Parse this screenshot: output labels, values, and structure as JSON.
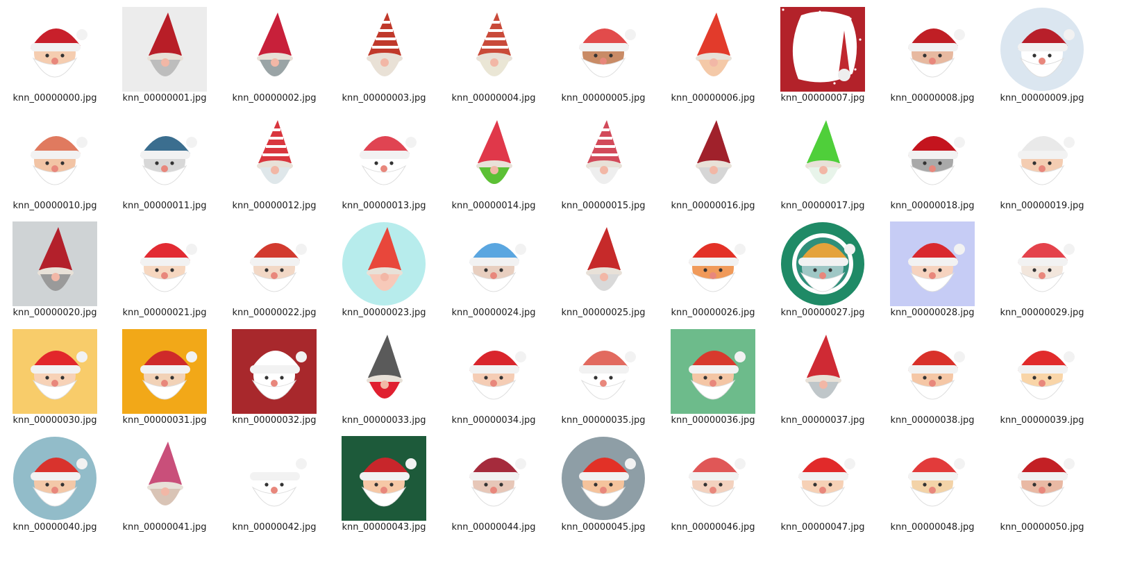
{
  "view": {
    "type": "icon-grid",
    "columns": 10
  },
  "files": [
    {
      "name": "knn_00000000.jpg",
      "kind": "santa-hat-card",
      "bg": "#ffffff",
      "hat": "#c8202b",
      "face": "#f5cdb0"
    },
    {
      "name": "knn_00000001.jpg",
      "kind": "gnome-tall",
      "bg": "#ececec",
      "hat": "#b81e27",
      "face": "#bdbdbd"
    },
    {
      "name": "knn_00000002.jpg",
      "kind": "gnome-tree",
      "bg": "#ffffff",
      "hat": "#c8203a",
      "face": "#9aa4a6"
    },
    {
      "name": "knn_00000003.jpg",
      "kind": "gnome-striped",
      "bg": "#ffffff",
      "hat": "#c0392b",
      "face": "#e9e1d6"
    },
    {
      "name": "knn_00000004.jpg",
      "kind": "gnome-striped",
      "bg": "#ffffff",
      "hat": "#c94a3a",
      "face": "#eae6d5"
    },
    {
      "name": "knn_00000005.jpg",
      "kind": "santa-outline",
      "bg": "#ffffff",
      "hat": "#e24b4b",
      "face": "#c98b66"
    },
    {
      "name": "knn_00000006.jpg",
      "kind": "gnome-small",
      "bg": "#ffffff",
      "hat": "#e23b2b",
      "face": "#f4c9a8"
    },
    {
      "name": "knn_00000007.jpg",
      "kind": "red-frame",
      "bg": "#b3222a",
      "hat": "#c0282f",
      "face": "#ffffff"
    },
    {
      "name": "knn_00000008.jpg",
      "kind": "santa-3d",
      "bg": "#ffffff",
      "hat": "#c01f25",
      "face": "#e7b9a0"
    },
    {
      "name": "knn_00000009.jpg",
      "kind": "snowglobe",
      "bg": "#dbe6f0",
      "hat": "#b81f2a",
      "face": "#ffffff"
    },
    {
      "name": "knn_00000010.jpg",
      "kind": "elf-sketch",
      "bg": "#ffffff",
      "hat": "#e07a5f",
      "face": "#f2c4a5"
    },
    {
      "name": "knn_00000011.jpg",
      "kind": "beard-blue-hat",
      "bg": "#ffffff",
      "hat": "#3b6e8f",
      "face": "#d8d8d8"
    },
    {
      "name": "knn_00000012.jpg",
      "kind": "gnome-striped",
      "bg": "#ffffff",
      "hat": "#d9363e",
      "face": "#dfe7ea"
    },
    {
      "name": "knn_00000013.jpg",
      "kind": "santa-line",
      "bg": "#ffffff",
      "hat": "#e04452",
      "face": "#ffffff"
    },
    {
      "name": "knn_00000014.jpg",
      "kind": "elf-hat",
      "bg": "#ffffff",
      "hat": "#e0384a",
      "face": "#5cc035"
    },
    {
      "name": "knn_00000015.jpg",
      "kind": "gnome-striped",
      "bg": "#ffffff",
      "hat": "#d24a5a",
      "face": "#eeeeee"
    },
    {
      "name": "knn_00000016.jpg",
      "kind": "gnome-small",
      "bg": "#ffffff",
      "hat": "#a0212b",
      "face": "#d6d6d6"
    },
    {
      "name": "knn_00000017.jpg",
      "kind": "gnome-small",
      "bg": "#ffffff",
      "hat": "#4fcf3a",
      "face": "#e8f4ea"
    },
    {
      "name": "knn_00000018.jpg",
      "kind": "santa-hat-beard",
      "bg": "#ffffff",
      "hat": "#c4141e",
      "face": "#a9a9a9"
    },
    {
      "name": "knn_00000019.jpg",
      "kind": "santa-green",
      "bg": "#ffffff",
      "hat": "#e9e9e9",
      "face": "#f4cdb2"
    },
    {
      "name": "knn_00000020.jpg",
      "kind": "gnome-wood",
      "bg": "#cfd3d5",
      "hat": "#b3202b",
      "face": "#9a9a9a"
    },
    {
      "name": "knn_00000021.jpg",
      "kind": "santa-mask",
      "bg": "#ffffff",
      "hat": "#e22b33",
      "face": "#f6d7c0"
    },
    {
      "name": "knn_00000022.jpg",
      "kind": "santa-small",
      "bg": "#ffffff",
      "hat": "#d23a2f",
      "face": "#f2d8c6"
    },
    {
      "name": "knn_00000023.jpg",
      "kind": "circle-gnome",
      "bg": "#b7ecec",
      "hat": "#e8473b",
      "face": "#f7c9b9"
    },
    {
      "name": "knn_00000024.jpg",
      "kind": "beard-long",
      "bg": "#ffffff",
      "hat": "#5aa6e0",
      "face": "#e8cfc0"
    },
    {
      "name": "knn_00000025.jpg",
      "kind": "gnome-gift",
      "bg": "#ffffff",
      "hat": "#c62a2a",
      "face": "#d9d9d9"
    },
    {
      "name": "knn_00000026.jpg",
      "kind": "santa-flat",
      "bg": "#ffffff",
      "hat": "#e33127",
      "face": "#f09a5a"
    },
    {
      "name": "knn_00000027.jpg",
      "kind": "wreath",
      "bg": "#1f8a66",
      "hat": "#e4a23b",
      "face": "#9fc7c5"
    },
    {
      "name": "knn_00000028.jpg",
      "kind": "santa-purple",
      "bg": "#c6ccf5",
      "hat": "#d9292f",
      "face": "#f6d3bf"
    },
    {
      "name": "knn_00000029.jpg",
      "kind": "hat-beard-flat",
      "bg": "#ffffff",
      "hat": "#e4424b",
      "face": "#f2e6dc"
    },
    {
      "name": "knn_00000030.jpg",
      "kind": "santa-bunting",
      "bg": "#f8cc6a",
      "hat": "#e2272b",
      "face": "#f7d2b7"
    },
    {
      "name": "knn_00000031.jpg",
      "kind": "santa-arms",
      "bg": "#f2a818",
      "hat": "#cf2a2a",
      "face": "#f2d2b7"
    },
    {
      "name": "knn_00000032.jpg",
      "kind": "santa-dots",
      "bg": "#a8282c",
      "hat": "#ffffff",
      "face": "#ffffff"
    },
    {
      "name": "knn_00000033.jpg",
      "kind": "gnome-stars",
      "bg": "#ffffff",
      "hat": "#5a5a5a",
      "face": "#e02030"
    },
    {
      "name": "knn_00000034.jpg",
      "kind": "santa-wink",
      "bg": "#ffffff",
      "hat": "#d9252c",
      "face": "#f5cdb5"
    },
    {
      "name": "knn_00000035.jpg",
      "kind": "santa-swirl",
      "bg": "#ffffff",
      "hat": "#e26a5f",
      "face": "#ffffff"
    },
    {
      "name": "knn_00000036.jpg",
      "kind": "santa-green-bg",
      "bg": "#6dbb8b",
      "hat": "#d83a2d",
      "face": "#f4c6a5"
    },
    {
      "name": "knn_00000037.jpg",
      "kind": "gnome-skate",
      "bg": "#ffffff",
      "hat": "#cf2a34",
      "face": "#bfc6c9"
    },
    {
      "name": "knn_00000038.jpg",
      "kind": "santa-standing",
      "bg": "#ffffff",
      "hat": "#d9312a",
      "face": "#f5c7a6"
    },
    {
      "name": "knn_00000039.jpg",
      "kind": "santa-cartoon",
      "bg": "#ffffff",
      "hat": "#e12b2b",
      "face": "#f9d5a8"
    },
    {
      "name": "knn_00000040.jpg",
      "kind": "circle-santa",
      "bg": "#92bcc9",
      "hat": "#d9332d",
      "face": "#f3c8a8"
    },
    {
      "name": "knn_00000041.jpg",
      "kind": "gnome-pink",
      "bg": "#ffffff",
      "hat": "#c94f7a",
      "face": "#d9c4b6"
    },
    {
      "name": "knn_00000042.jpg",
      "kind": "santa-outline-thin",
      "bg": "#ffffff",
      "hat": "#ffffff",
      "face": "#ffffff"
    },
    {
      "name": "knn_00000043.jpg",
      "kind": "santa-green-square",
      "bg": "#1d5a3a",
      "hat": "#c8262b",
      "face": "#f6c8a6"
    },
    {
      "name": "knn_00000044.jpg",
      "kind": "santa-old",
      "bg": "#ffffff",
      "hat": "#a52b3c",
      "face": "#e7c7b8"
    },
    {
      "name": "knn_00000045.jpg",
      "kind": "circle-flat",
      "bg": "#8e9ea6",
      "hat": "#e23127",
      "face": "#f5c39c"
    },
    {
      "name": "knn_00000046.jpg",
      "kind": "santa-wink-beard",
      "bg": "#ffffff",
      "hat": "#e05757",
      "face": "#f3d2bf"
    },
    {
      "name": "knn_00000047.jpg",
      "kind": "santa-sleep",
      "bg": "#ffffff",
      "hat": "#e12a2a",
      "face": "#f6d1b6"
    },
    {
      "name": "knn_00000048.jpg",
      "kind": "santa-glasses",
      "bg": "#ffffff",
      "hat": "#e23b3b",
      "face": "#f3d3a8"
    },
    {
      "name": "knn_00000050.jpg",
      "kind": "santa-realistic",
      "bg": "#ffffff",
      "hat": "#c32025",
      "face": "#e9b9a4"
    }
  ]
}
